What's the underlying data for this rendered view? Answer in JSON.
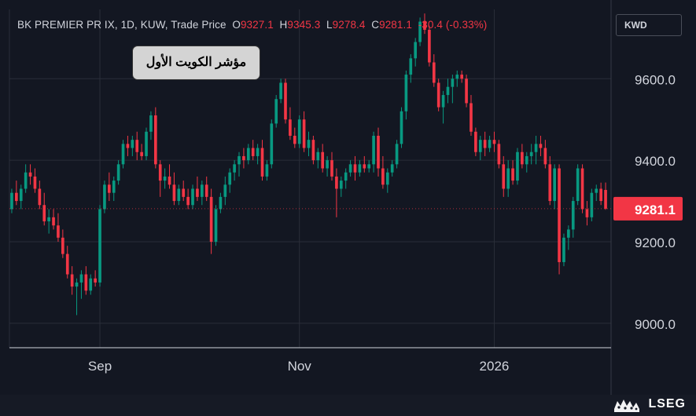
{
  "header": {
    "symbol": "BK PREMIER PR IX, 1D, KUW, Trade Price",
    "open_label": "O",
    "open": "9327.1",
    "high_label": "H",
    "high": "9345.3",
    "low_label": "L",
    "low": "9278.4",
    "close_label": "C",
    "close": "9281.1",
    "change": "-30.4 (-0.33%)"
  },
  "currency": "KWD",
  "badge": "مؤشر الكويت الأول",
  "last_price": "9281.1",
  "brand": "LSEG",
  "colors": {
    "up": "#089981",
    "down": "#f23645",
    "background": "#131722",
    "grid": "#2a2e39",
    "text": "#d1d4dc"
  },
  "chart_data": {
    "type": "candlestick",
    "ylim": [
      8940,
      9770
    ],
    "yticks": [
      9000,
      9200,
      9400,
      9600
    ],
    "ytick_labels": [
      "9000.0",
      "9200.0",
      "9400.0",
      "9600.0"
    ],
    "xtick_labels": [
      {
        "label": "Sep",
        "index": 19
      },
      {
        "label": "Nov",
        "index": 62
      },
      {
        "label": "2026",
        "index": 104
      }
    ],
    "grid": true,
    "last_price": 9281.1,
    "candles": [
      [
        9280,
        9330,
        9270,
        9320
      ],
      [
        9320,
        9350,
        9290,
        9300
      ],
      [
        9300,
        9340,
        9280,
        9330
      ],
      [
        9330,
        9390,
        9320,
        9370
      ],
      [
        9370,
        9390,
        9340,
        9360
      ],
      [
        9360,
        9380,
        9320,
        9330
      ],
      [
        9330,
        9350,
        9280,
        9290
      ],
      [
        9290,
        9320,
        9240,
        9250
      ],
      [
        9250,
        9280,
        9220,
        9260
      ],
      [
        9260,
        9280,
        9230,
        9240
      ],
      [
        9240,
        9270,
        9200,
        9210
      ],
      [
        9210,
        9230,
        9160,
        9170
      ],
      [
        9170,
        9190,
        9110,
        9120
      ],
      [
        9120,
        9140,
        9070,
        9090
      ],
      [
        9090,
        9110,
        9020,
        9100
      ],
      [
        9100,
        9130,
        9060,
        9120
      ],
      [
        9120,
        9140,
        9070,
        9080
      ],
      [
        9080,
        9120,
        9070,
        9110
      ],
      [
        9110,
        9130,
        9090,
        9100
      ],
      [
        9100,
        9290,
        9090,
        9280
      ],
      [
        9280,
        9350,
        9270,
        9340
      ],
      [
        9340,
        9370,
        9300,
        9320
      ],
      [
        9320,
        9360,
        9300,
        9350
      ],
      [
        9350,
        9400,
        9340,
        9390
      ],
      [
        9390,
        9450,
        9380,
        9440
      ],
      [
        9440,
        9460,
        9410,
        9430
      ],
      [
        9430,
        9460,
        9410,
        9450
      ],
      [
        9450,
        9470,
        9400,
        9420
      ],
      [
        9420,
        9440,
        9400,
        9410
      ],
      [
        9410,
        9480,
        9400,
        9470
      ],
      [
        9470,
        9520,
        9450,
        9510
      ],
      [
        9510,
        9530,
        9380,
        9390
      ],
      [
        9390,
        9400,
        9310,
        9350
      ],
      [
        9350,
        9380,
        9330,
        9360
      ],
      [
        9360,
        9390,
        9330,
        9340
      ],
      [
        9340,
        9370,
        9290,
        9300
      ],
      [
        9300,
        9340,
        9290,
        9330
      ],
      [
        9330,
        9350,
        9300,
        9310
      ],
      [
        9310,
        9330,
        9280,
        9290
      ],
      [
        9290,
        9340,
        9280,
        9330
      ],
      [
        9330,
        9360,
        9300,
        9310
      ],
      [
        9310,
        9350,
        9290,
        9340
      ],
      [
        9340,
        9360,
        9300,
        9310
      ],
      [
        9310,
        9330,
        9170,
        9200
      ],
      [
        9200,
        9290,
        9190,
        9280
      ],
      [
        9280,
        9320,
        9270,
        9310
      ],
      [
        9310,
        9360,
        9290,
        9340
      ],
      [
        9340,
        9380,
        9320,
        9370
      ],
      [
        9370,
        9400,
        9350,
        9390
      ],
      [
        9390,
        9420,
        9360,
        9410
      ],
      [
        9410,
        9430,
        9380,
        9400
      ],
      [
        9400,
        9440,
        9390,
        9430
      ],
      [
        9430,
        9450,
        9400,
        9410
      ],
      [
        9410,
        9440,
        9390,
        9430
      ],
      [
        9430,
        9450,
        9350,
        9360
      ],
      [
        9360,
        9400,
        9350,
        9390
      ],
      [
        9390,
        9500,
        9380,
        9490
      ],
      [
        9490,
        9560,
        9480,
        9550
      ],
      [
        9550,
        9600,
        9540,
        9590
      ],
      [
        9590,
        9600,
        9490,
        9500
      ],
      [
        9500,
        9530,
        9450,
        9460
      ],
      [
        9460,
        9480,
        9430,
        9440
      ],
      [
        9440,
        9510,
        9430,
        9500
      ],
      [
        9500,
        9520,
        9420,
        9430
      ],
      [
        9430,
        9470,
        9410,
        9450
      ],
      [
        9450,
        9460,
        9390,
        9400
      ],
      [
        9400,
        9430,
        9380,
        9420
      ],
      [
        9420,
        9440,
        9370,
        9380
      ],
      [
        9380,
        9410,
        9360,
        9400
      ],
      [
        9400,
        9420,
        9350,
        9360
      ],
      [
        9360,
        9380,
        9260,
        9330
      ],
      [
        9330,
        9360,
        9310,
        9350
      ],
      [
        9350,
        9380,
        9330,
        9370
      ],
      [
        9370,
        9400,
        9360,
        9390
      ],
      [
        9390,
        9410,
        9350,
        9370
      ],
      [
        9370,
        9400,
        9360,
        9390
      ],
      [
        9390,
        9410,
        9370,
        9380
      ],
      [
        9380,
        9400,
        9370,
        9390
      ],
      [
        9390,
        9470,
        9370,
        9460
      ],
      [
        9460,
        9480,
        9360,
        9380
      ],
      [
        9380,
        9410,
        9330,
        9340
      ],
      [
        9340,
        9380,
        9320,
        9370
      ],
      [
        9370,
        9400,
        9360,
        9390
      ],
      [
        9390,
        9450,
        9380,
        9440
      ],
      [
        9440,
        9530,
        9430,
        9520
      ],
      [
        9520,
        9620,
        9500,
        9610
      ],
      [
        9610,
        9660,
        9590,
        9650
      ],
      [
        9650,
        9700,
        9630,
        9690
      ],
      [
        9690,
        9750,
        9680,
        9740
      ],
      [
        9740,
        9760,
        9710,
        9720
      ],
      [
        9720,
        9730,
        9630,
        9640
      ],
      [
        9640,
        9660,
        9580,
        9590
      ],
      [
        9590,
        9600,
        9520,
        9530
      ],
      [
        9530,
        9570,
        9490,
        9560
      ],
      [
        9560,
        9600,
        9540,
        9580
      ],
      [
        9580,
        9610,
        9540,
        9600
      ],
      [
        9600,
        9620,
        9580,
        9610
      ],
      [
        9610,
        9620,
        9590,
        9600
      ],
      [
        9600,
        9610,
        9530,
        9540
      ],
      [
        9540,
        9560,
        9460,
        9470
      ],
      [
        9470,
        9480,
        9410,
        9420
      ],
      [
        9420,
        9460,
        9400,
        9450
      ],
      [
        9450,
        9470,
        9410,
        9430
      ],
      [
        9430,
        9460,
        9420,
        9450
      ],
      [
        9450,
        9470,
        9420,
        9440
      ],
      [
        9440,
        9450,
        9380,
        9390
      ],
      [
        9390,
        9410,
        9310,
        9330
      ],
      [
        9330,
        9400,
        9310,
        9380
      ],
      [
        9380,
        9400,
        9340,
        9350
      ],
      [
        9350,
        9430,
        9340,
        9420
      ],
      [
        9420,
        9440,
        9380,
        9390
      ],
      [
        9390,
        9420,
        9370,
        9410
      ],
      [
        9410,
        9440,
        9390,
        9420
      ],
      [
        9420,
        9460,
        9390,
        9440
      ],
      [
        9440,
        9460,
        9410,
        9430
      ],
      [
        9430,
        9450,
        9380,
        9390
      ],
      [
        9390,
        9410,
        9290,
        9300
      ],
      [
        9300,
        9390,
        9280,
        9380
      ],
      [
        9380,
        9390,
        9120,
        9150
      ],
      [
        9150,
        9220,
        9140,
        9210
      ],
      [
        9210,
        9240,
        9180,
        9230
      ],
      [
        9230,
        9310,
        9210,
        9300
      ],
      [
        9300,
        9390,
        9290,
        9380
      ],
      [
        9380,
        9390,
        9270,
        9280
      ],
      [
        9280,
        9300,
        9240,
        9260
      ],
      [
        9260,
        9330,
        9250,
        9320
      ],
      [
        9320,
        9340,
        9300,
        9330
      ],
      [
        9330,
        9345,
        9290,
        9300
      ],
      [
        9327.1,
        9345.3,
        9278.4,
        9281.1
      ]
    ]
  }
}
